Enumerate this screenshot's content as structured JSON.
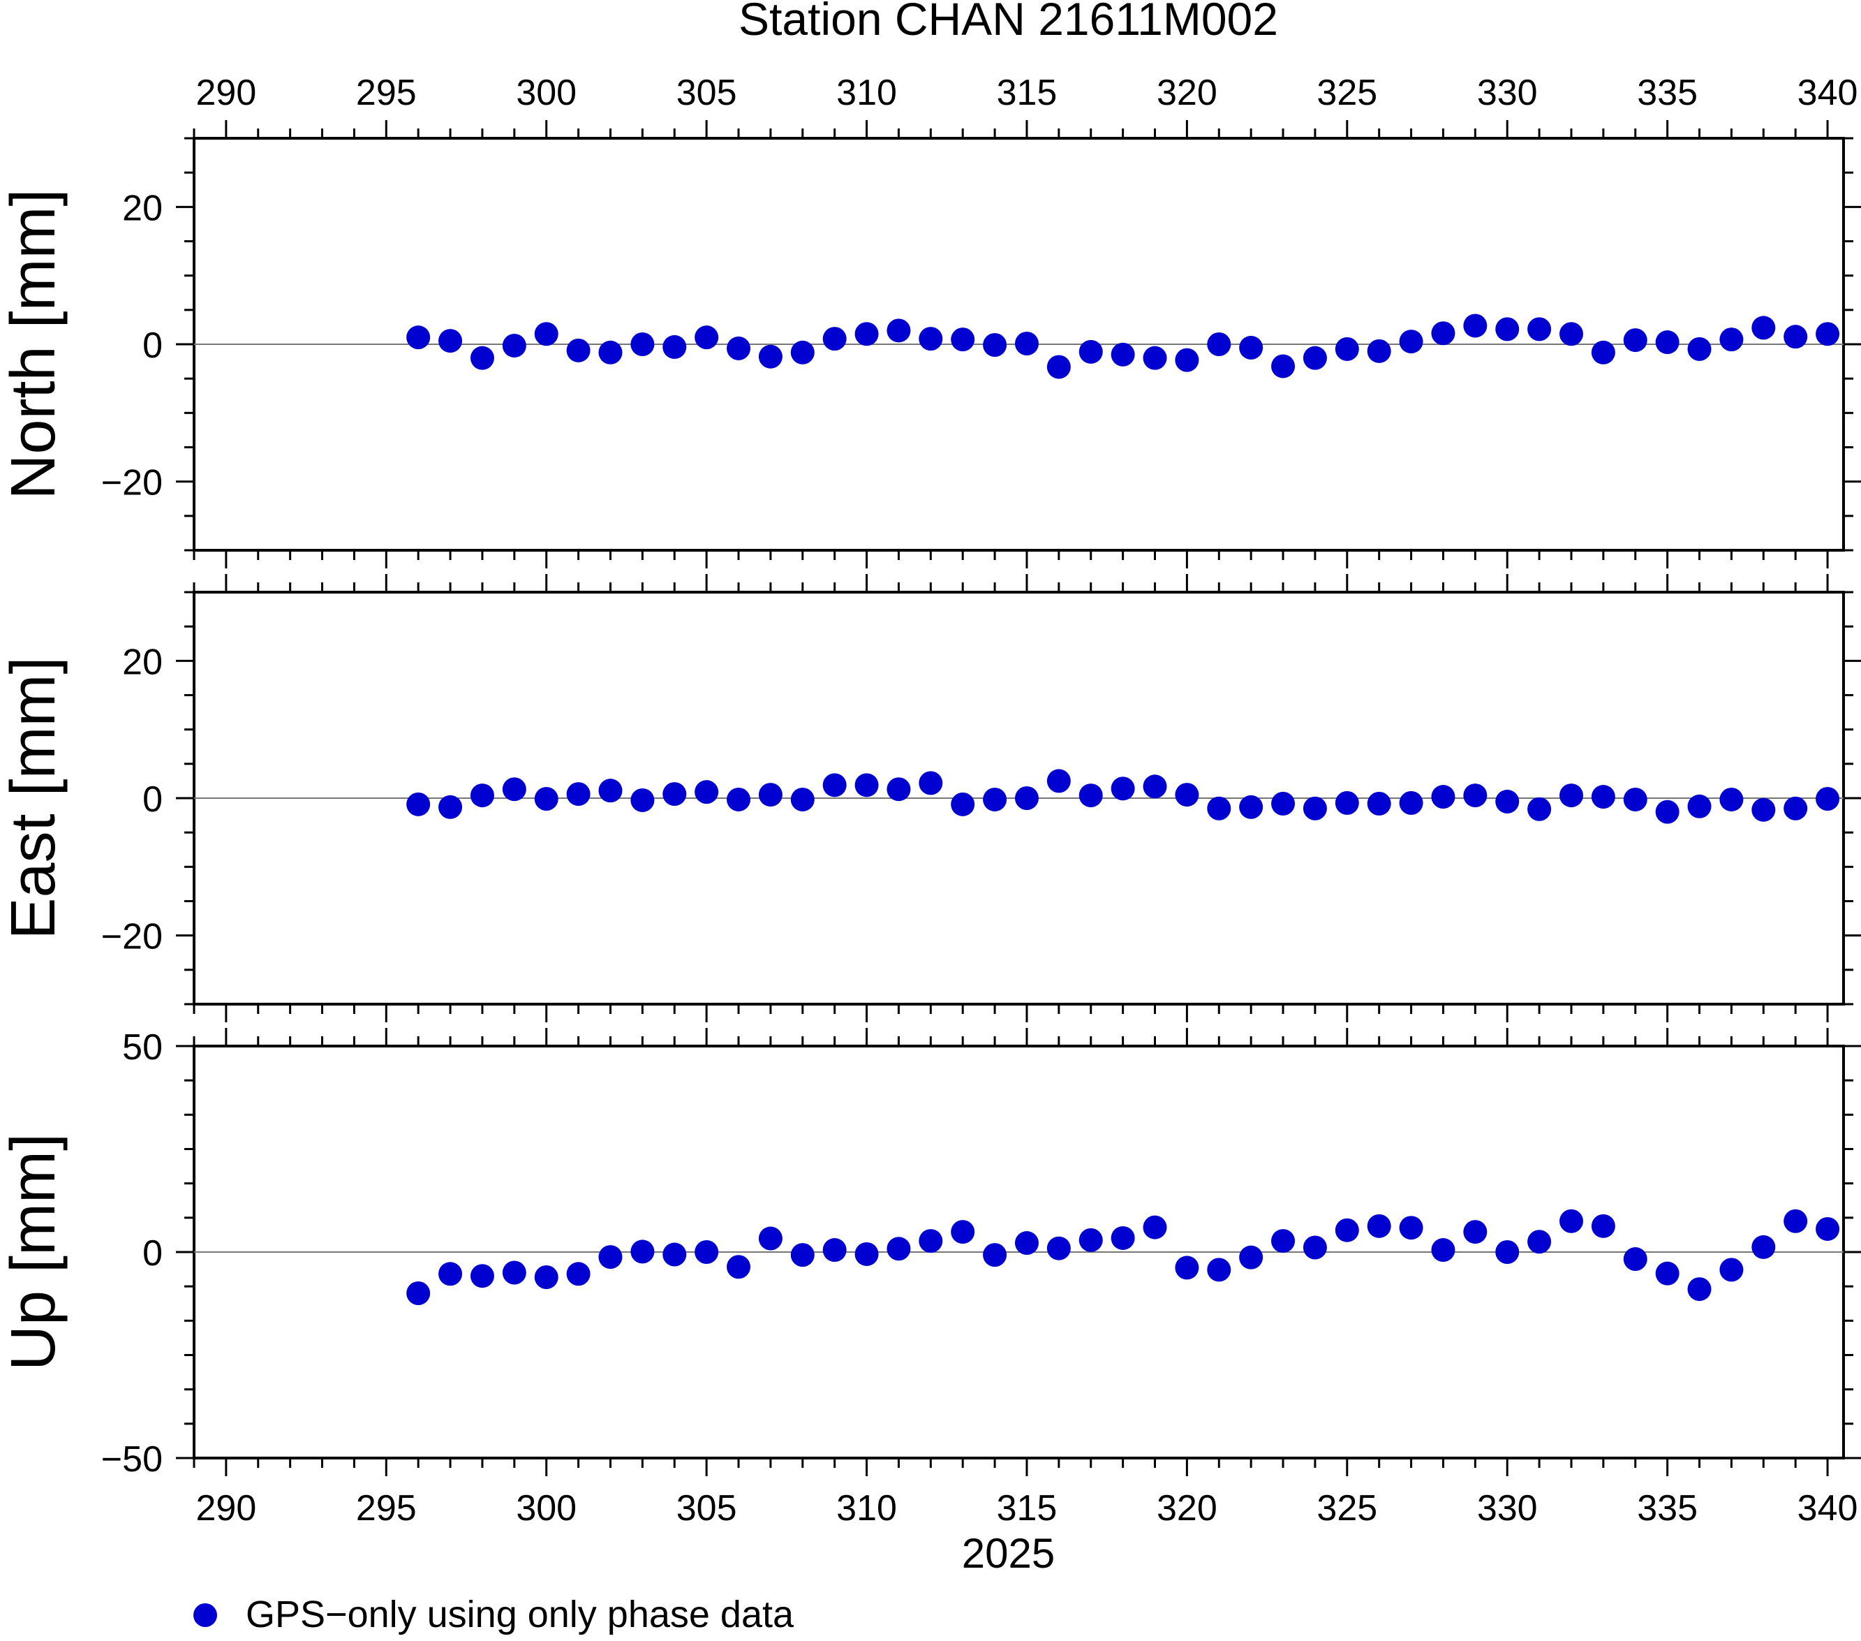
{
  "chart_data": {
    "type": "scatter",
    "title": "Station CHAN 21611M002",
    "xlabel": "2025",
    "x_range": [
      289,
      340.5
    ],
    "x_ticks": [
      "290",
      "295",
      "300",
      "305",
      "310",
      "315",
      "320",
      "325",
      "330",
      "335",
      "340"
    ],
    "grid": false,
    "legend_placement": "bottom-left",
    "marker_color": "#0000d0",
    "zero_line": true,
    "legend": [
      {
        "label": "GPS−only using only phase data",
        "color": "#0000d0"
      }
    ],
    "panels": [
      {
        "ylabel": "North [mm]",
        "ylim": [
          -30,
          30
        ],
        "y_ticks": [
          "20",
          "0",
          "−20"
        ],
        "series": [
          {
            "name": "GPS−only using only phase data",
            "x": [
              296,
              297,
              298,
              299,
              300,
              301,
              302,
              303,
              304,
              305,
              306,
              307,
              308,
              309,
              310,
              311,
              312,
              313,
              314,
              315,
              316,
              317,
              318,
              319,
              320,
              321,
              322,
              323,
              324,
              325,
              326,
              327,
              328,
              329,
              330,
              331,
              332,
              333,
              334,
              335,
              336,
              337,
              338,
              339,
              340
            ],
            "y": [
              1.0,
              0.5,
              -2.0,
              -0.2,
              1.5,
              -0.9,
              -1.2,
              0.0,
              -0.4,
              1.0,
              -0.6,
              -1.8,
              -1.2,
              0.8,
              1.5,
              2.0,
              0.8,
              0.7,
              -0.1,
              0.1,
              -3.3,
              -1.1,
              -1.5,
              -2.0,
              -2.3,
              0.0,
              -0.5,
              -3.2,
              -2.0,
              -0.7,
              -1.0,
              0.4,
              1.6,
              2.7,
              2.2,
              2.2,
              1.5,
              -1.2,
              0.6,
              0.3,
              -0.7,
              0.7,
              2.4,
              1.1,
              1.5
            ]
          }
        ]
      },
      {
        "ylabel": "East [mm]",
        "ylim": [
          -30,
          30
        ],
        "y_ticks": [
          "20",
          "0",
          "−20"
        ],
        "series": [
          {
            "name": "GPS−only using only phase data",
            "x": [
              296,
              297,
              298,
              299,
              300,
              301,
              302,
              303,
              304,
              305,
              306,
              307,
              308,
              309,
              310,
              311,
              312,
              313,
              314,
              315,
              316,
              317,
              318,
              319,
              320,
              321,
              322,
              323,
              324,
              325,
              326,
              327,
              328,
              329,
              330,
              331,
              332,
              333,
              334,
              335,
              336,
              337,
              338,
              339,
              340
            ],
            "y": [
              -0.9,
              -1.3,
              0.4,
              1.3,
              -0.1,
              0.6,
              1.1,
              -0.3,
              0.6,
              0.9,
              -0.2,
              0.5,
              -0.2,
              1.9,
              1.9,
              1.3,
              2.2,
              -0.9,
              -0.2,
              0.0,
              2.5,
              0.4,
              1.4,
              1.7,
              0.5,
              -1.5,
              -1.3,
              -0.8,
              -1.5,
              -0.7,
              -0.8,
              -0.7,
              0.2,
              0.4,
              -0.5,
              -1.6,
              0.4,
              0.2,
              -0.2,
              -2.0,
              -1.2,
              -0.2,
              -1.7,
              -1.5,
              -0.1
            ]
          }
        ]
      },
      {
        "ylabel": "Up [mm]",
        "ylim": [
          -50,
          50
        ],
        "y_ticks": [
          "50",
          "0",
          "−50"
        ],
        "series": [
          {
            "name": "GPS−only using only phase data",
            "x": [
              296,
              297,
              298,
              299,
              300,
              301,
              302,
              303,
              304,
              305,
              306,
              307,
              308,
              309,
              310,
              311,
              312,
              313,
              314,
              315,
              316,
              317,
              318,
              319,
              320,
              321,
              322,
              323,
              324,
              325,
              326,
              327,
              328,
              329,
              330,
              331,
              332,
              333,
              334,
              335,
              336,
              337,
              338,
              339,
              340
            ],
            "y": [
              -10.0,
              -5.3,
              -5.8,
              -5.0,
              -6.1,
              -5.3,
              -1.2,
              0.1,
              -0.6,
              0.0,
              -3.6,
              3.3,
              -0.7,
              0.5,
              -0.5,
              0.8,
              2.7,
              4.9,
              -0.7,
              2.2,
              0.9,
              2.9,
              3.4,
              6.0,
              -3.8,
              -4.3,
              -1.3,
              2.7,
              1.1,
              5.3,
              6.3,
              5.9,
              0.5,
              4.9,
              0.0,
              2.5,
              7.5,
              6.3,
              -1.7,
              -5.2,
              -9.0,
              -4.3,
              1.2,
              7.5,
              5.6
            ]
          }
        ]
      }
    ]
  }
}
